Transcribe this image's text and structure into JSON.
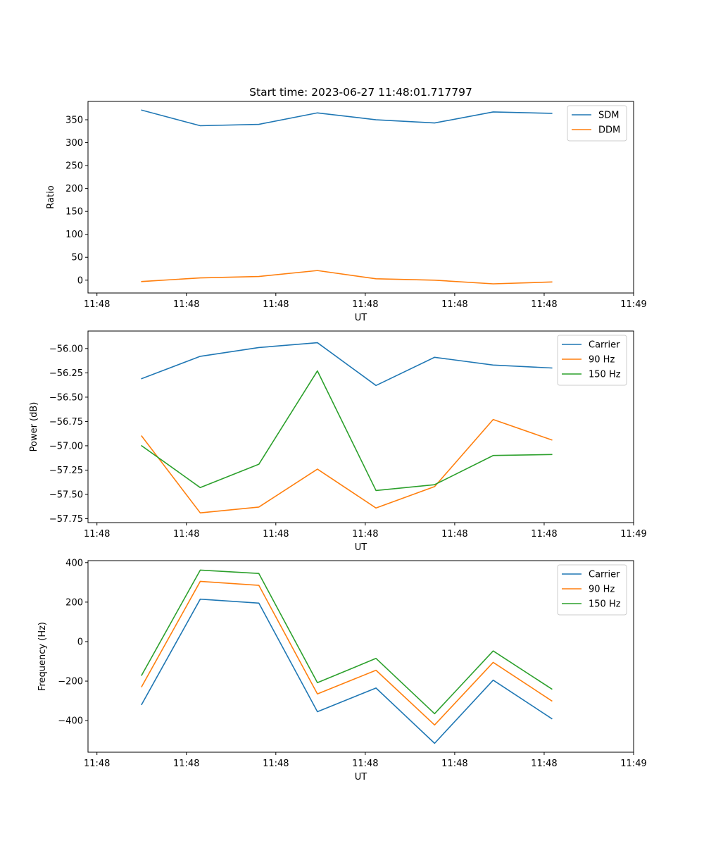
{
  "figure": {
    "title": "Start time: 2023-06-27 11:48:01.717797"
  },
  "chart_data": [
    {
      "type": "line",
      "title": "Start time: 2023-06-27 11:48:01.717797",
      "xlabel": "UT",
      "ylabel": "Ratio",
      "x_tick_labels": [
        "11:48",
        "11:48",
        "11:48",
        "11:48",
        "11:48",
        "11:48",
        "11:49"
      ],
      "x_ticks": [
        0,
        1,
        2,
        3,
        4,
        5,
        6
      ],
      "x": [
        0.5,
        1.155,
        1.81,
        2.465,
        3.12,
        3.775,
        4.43,
        5.085
      ],
      "xlim": [
        -0.1,
        6.0
      ],
      "ylim": [
        -28,
        390
      ],
      "y_ticks": [
        0,
        50,
        100,
        150,
        200,
        250,
        300,
        350
      ],
      "grid": false,
      "legend_position": "top-right",
      "series": [
        {
          "name": "SDM",
          "color": "#1f77b4",
          "values": [
            371,
            337,
            340,
            365,
            350,
            343,
            367,
            364
          ]
        },
        {
          "name": "DDM",
          "color": "#ff7f0e",
          "values": [
            -3,
            5,
            8,
            21,
            3,
            0,
            -8,
            -4
          ]
        }
      ]
    },
    {
      "type": "line",
      "xlabel": "UT",
      "ylabel": "Power (dB)",
      "x_tick_labels": [
        "11:48",
        "11:48",
        "11:48",
        "11:48",
        "11:48",
        "11:48",
        "11:49"
      ],
      "x_ticks": [
        0,
        1,
        2,
        3,
        4,
        5,
        6
      ],
      "x": [
        0.5,
        1.155,
        1.81,
        2.465,
        3.12,
        3.775,
        4.43,
        5.085
      ],
      "xlim": [
        -0.1,
        6.0
      ],
      "ylim": [
        -57.79,
        -55.82
      ],
      "y_ticks": [
        -57.75,
        -57.5,
        -57.25,
        -57.0,
        -56.75,
        -56.5,
        -56.25,
        -56.0
      ],
      "y_tick_labels": [
        "−57.75",
        "−57.50",
        "−57.25",
        "−57.00",
        "−56.75",
        "−56.50",
        "−56.25",
        "−56.00"
      ],
      "grid": false,
      "legend_position": "top-right",
      "series": [
        {
          "name": "Carrier",
          "color": "#1f77b4",
          "values": [
            -56.31,
            -56.08,
            -55.99,
            -55.94,
            -56.38,
            -56.09,
            -56.17,
            -56.2
          ]
        },
        {
          "name": "90 Hz",
          "color": "#ff7f0e",
          "values": [
            -56.9,
            -57.69,
            -57.63,
            -57.24,
            -57.64,
            -57.42,
            -56.73,
            -56.94
          ]
        },
        {
          "name": "150 Hz",
          "color": "#2ca02c",
          "values": [
            -57.0,
            -57.43,
            -57.19,
            -56.23,
            -57.46,
            -57.4,
            -57.1,
            -57.09
          ]
        }
      ]
    },
    {
      "type": "line",
      "xlabel": "UT",
      "ylabel": "Frequency (Hz)",
      "x_tick_labels": [
        "11:48",
        "11:48",
        "11:48",
        "11:48",
        "11:48",
        "11:48",
        "11:49"
      ],
      "x_ticks": [
        0,
        1,
        2,
        3,
        4,
        5,
        6
      ],
      "x": [
        0.5,
        1.155,
        1.81,
        2.465,
        3.12,
        3.775,
        4.43,
        5.085
      ],
      "xlim": [
        -0.1,
        6.0
      ],
      "ylim": [
        -560,
        410
      ],
      "y_ticks": [
        -400,
        -200,
        0,
        200,
        400
      ],
      "y_tick_labels": [
        "−400",
        "−200",
        "0",
        "200",
        "400"
      ],
      "grid": false,
      "legend_position": "top-right",
      "series": [
        {
          "name": "Carrier",
          "color": "#1f77b4",
          "values": [
            -318,
            215,
            195,
            -355,
            -235,
            -515,
            -195,
            -390
          ]
        },
        {
          "name": "90 Hz",
          "color": "#ff7f0e",
          "values": [
            -228,
            305,
            285,
            -265,
            -145,
            -422,
            -105,
            -300
          ]
        },
        {
          "name": "150 Hz",
          "color": "#2ca02c",
          "values": [
            -170,
            362,
            345,
            -208,
            -85,
            -365,
            -47,
            -240
          ]
        }
      ]
    }
  ]
}
